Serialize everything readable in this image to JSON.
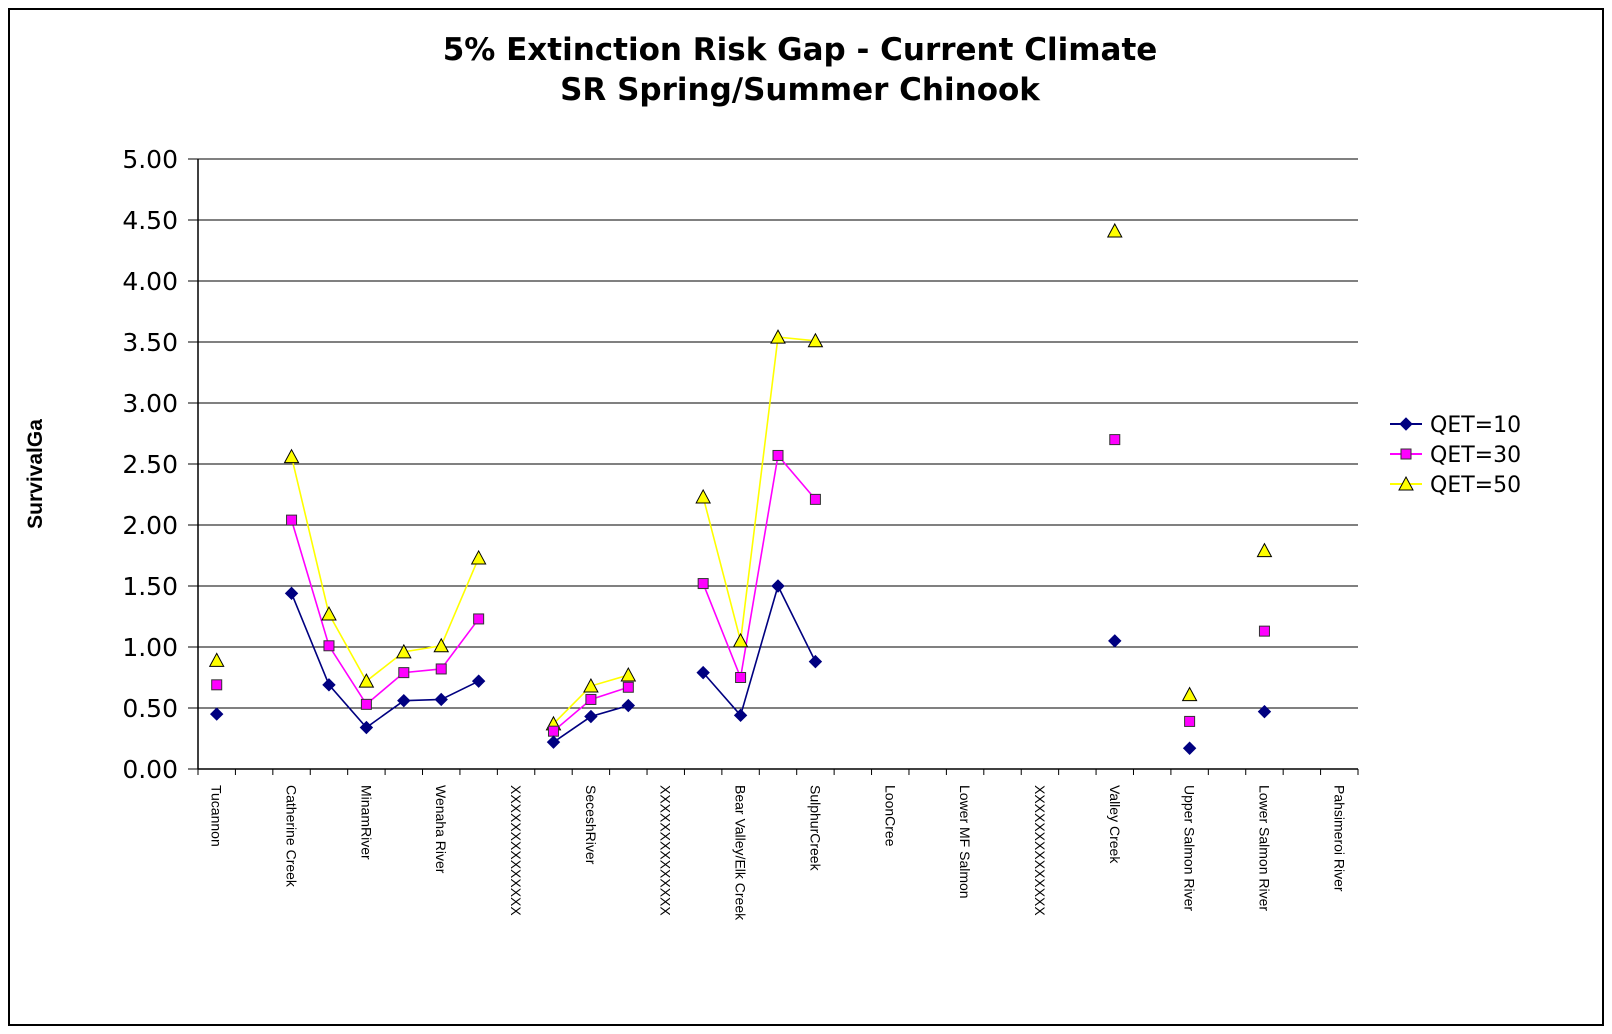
{
  "chart_data": {
    "type": "line",
    "title": "5% Extinction Risk Gap - Current Climate",
    "subtitle": "SR Spring/Summer Chinook",
    "ylabel": "SurvivalGa",
    "xlabel": "",
    "ylim": [
      0,
      5
    ],
    "yticks": [
      "0.00",
      "0.50",
      "1.00",
      "1.50",
      "2.00",
      "2.50",
      "3.00",
      "3.50",
      "4.00",
      "4.50",
      "5.00"
    ],
    "grid": true,
    "legend_position": "right",
    "tick_labels": [
      "Tucannon",
      "Catherine Creek",
      "MinamRiver",
      "Wenaha River",
      "XXXXXXXXXXXXXX",
      "SeceshRiver",
      "XXXXXXXXXXXXXX",
      "Bear Valley/Elk Creek",
      "SulphurCreek",
      "LoonCree",
      "Lower MF Salmon",
      "XXXXXXXXXXXXXX",
      "Valley Creek",
      "Upper Salmon River",
      "Lower Salmon River",
      "Pahsimeroi River"
    ],
    "num_points": 31,
    "series": [
      {
        "name": "QET=10",
        "color": "#000080",
        "marker": "diamond",
        "values": [
          0.45,
          null,
          1.44,
          0.69,
          0.34,
          0.56,
          0.57,
          0.72,
          null,
          0.22,
          0.43,
          0.52,
          null,
          0.79,
          0.44,
          1.5,
          0.88,
          null,
          null,
          null,
          null,
          null,
          null,
          null,
          1.05,
          null,
          0.17,
          null,
          0.47,
          null,
          null
        ]
      },
      {
        "name": "QET=30",
        "color": "#ff00ff",
        "marker": "square",
        "values": [
          0.69,
          null,
          2.04,
          1.01,
          0.53,
          0.79,
          0.82,
          1.23,
          null,
          0.31,
          0.57,
          0.67,
          null,
          1.52,
          0.75,
          2.57,
          2.21,
          null,
          null,
          null,
          null,
          null,
          null,
          null,
          2.7,
          null,
          0.39,
          null,
          1.13,
          null,
          null
        ]
      },
      {
        "name": "QET=50",
        "color": "#ffff00",
        "marker": "triangle",
        "values": [
          0.89,
          null,
          2.56,
          1.27,
          0.72,
          0.96,
          1.01,
          1.73,
          null,
          0.37,
          0.68,
          0.77,
          null,
          2.23,
          1.05,
          3.54,
          3.51,
          null,
          null,
          null,
          null,
          null,
          null,
          null,
          4.41,
          null,
          0.61,
          null,
          1.79,
          null,
          null
        ]
      }
    ]
  }
}
